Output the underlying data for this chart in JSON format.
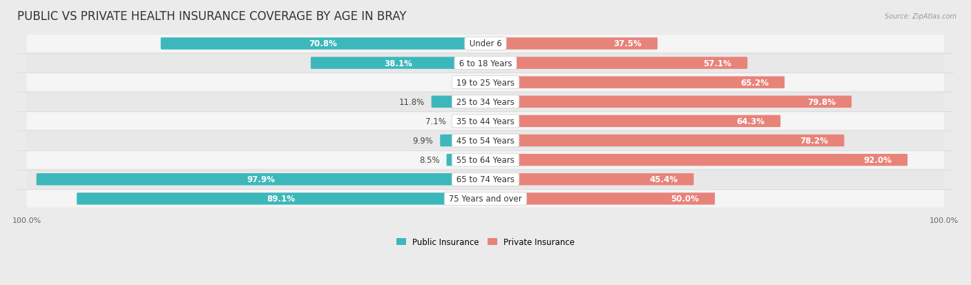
{
  "title": "PUBLIC VS PRIVATE HEALTH INSURANCE COVERAGE BY AGE IN BRAY",
  "source": "Source: ZipAtlas.com",
  "categories": [
    "Under 6",
    "6 to 18 Years",
    "19 to 25 Years",
    "25 to 34 Years",
    "35 to 44 Years",
    "45 to 54 Years",
    "55 to 64 Years",
    "65 to 74 Years",
    "75 Years and over"
  ],
  "public_values": [
    70.8,
    38.1,
    0.0,
    11.8,
    7.1,
    9.9,
    8.5,
    97.9,
    89.1
  ],
  "private_values": [
    37.5,
    57.1,
    65.2,
    79.8,
    64.3,
    78.2,
    92.0,
    45.4,
    50.0
  ],
  "public_color": "#3cb8bc",
  "private_color": "#e8837a",
  "background_color": "#ebebeb",
  "row_bg_color": "#f5f5f5",
  "row_alt_bg_color": "#e8e8e8",
  "max_value": 100.0,
  "bar_height": 0.62,
  "title_fontsize": 12,
  "label_fontsize": 8.5,
  "value_fontsize": 8.5,
  "tick_fontsize": 8,
  "legend_fontsize": 8.5,
  "inside_label_threshold": 12
}
